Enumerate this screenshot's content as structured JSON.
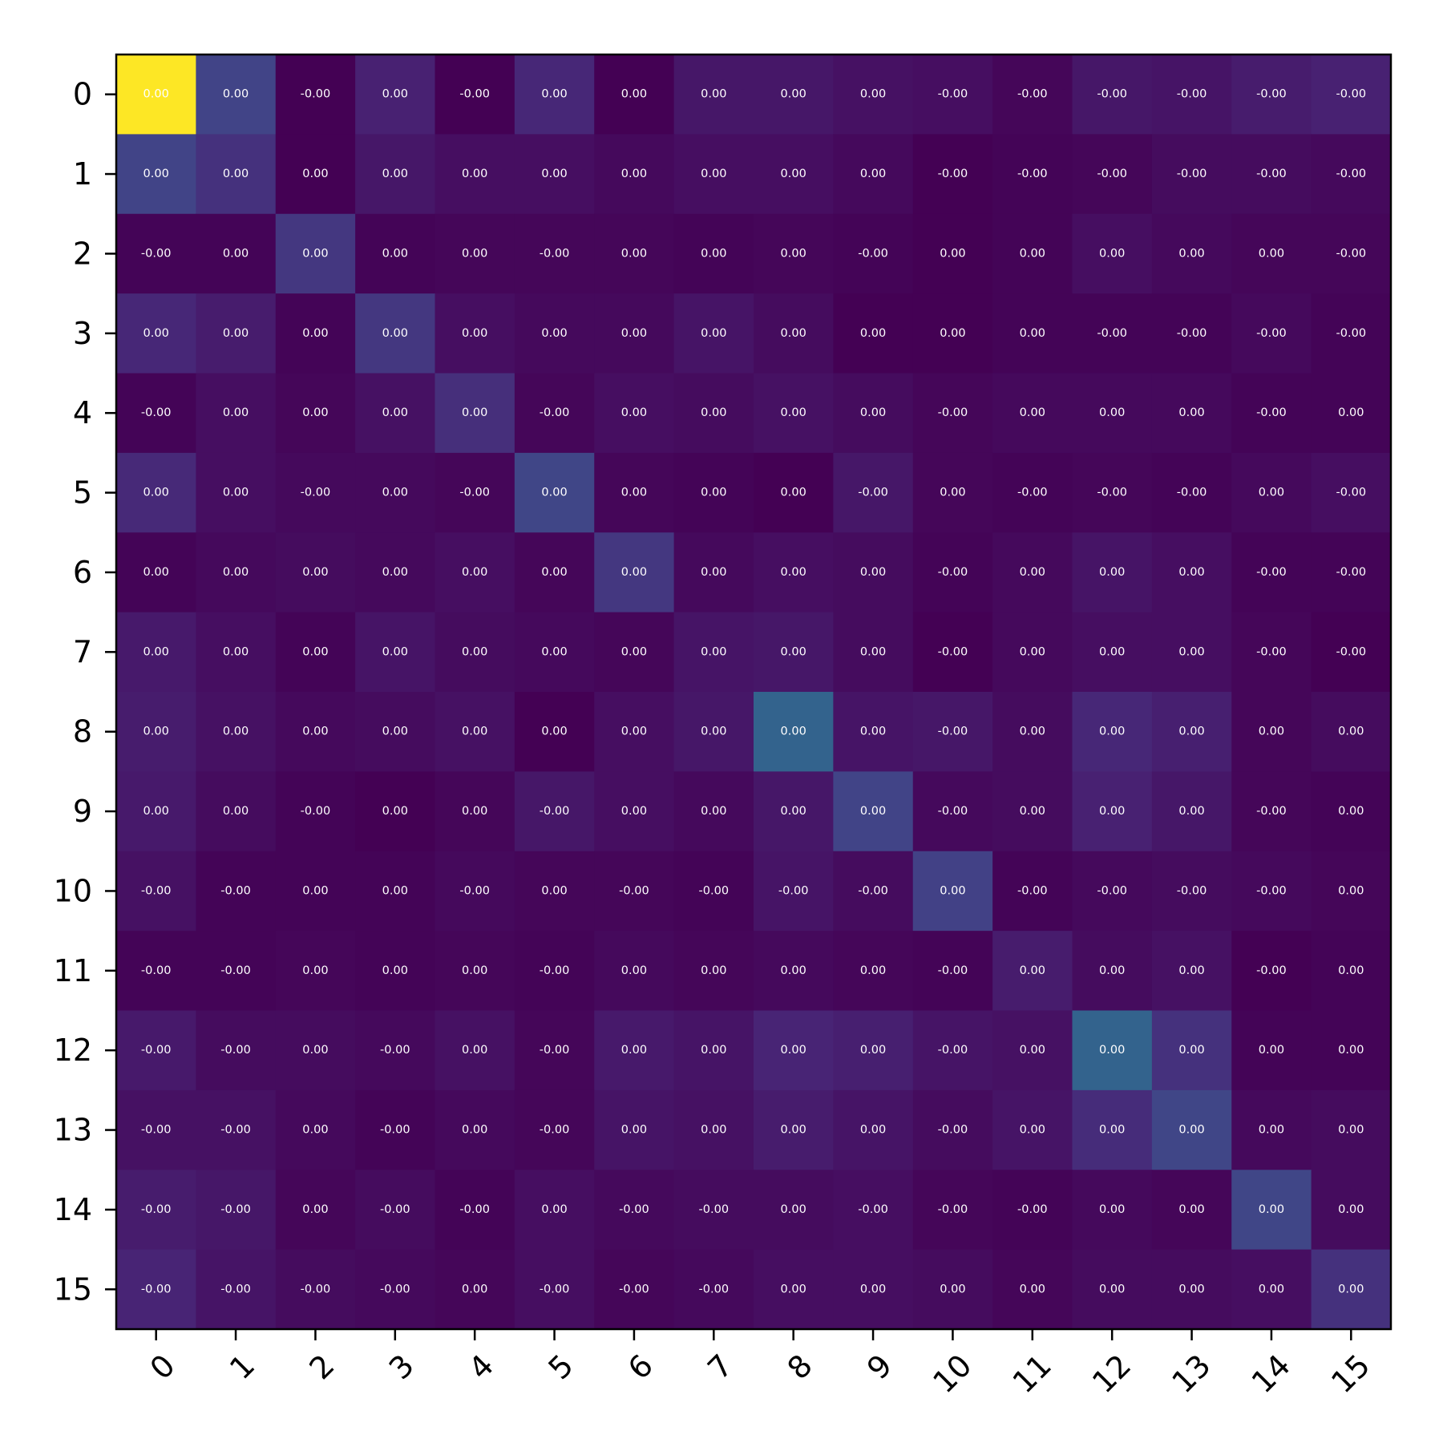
{
  "chart_data": {
    "type": "heatmap",
    "title": "",
    "xlabel": "",
    "ylabel": "",
    "colormap": "viridis",
    "x_labels": [
      "0",
      "1",
      "2",
      "3",
      "4",
      "5",
      "6",
      "7",
      "8",
      "9",
      "10",
      "11",
      "12",
      "13",
      "14",
      "15"
    ],
    "y_labels": [
      "0",
      "1",
      "2",
      "3",
      "4",
      "5",
      "6",
      "7",
      "8",
      "9",
      "10",
      "11",
      "12",
      "13",
      "14",
      "15"
    ],
    "intensity_scale": [
      0,
      1
    ],
    "intensity": [
      [
        1.0,
        0.25,
        0.0,
        0.12,
        0.0,
        0.14,
        0.0,
        0.08,
        0.08,
        0.06,
        0.05,
        0.02,
        0.08,
        0.07,
        0.1,
        0.12
      ],
      [
        0.25,
        0.18,
        0.0,
        0.08,
        0.05,
        0.05,
        0.03,
        0.05,
        0.05,
        0.03,
        0.0,
        0.01,
        0.02,
        0.04,
        0.04,
        0.03
      ],
      [
        0.01,
        0.01,
        0.2,
        0.01,
        0.02,
        0.02,
        0.02,
        0.01,
        0.02,
        0.01,
        0.0,
        0.01,
        0.05,
        0.03,
        0.02,
        0.02
      ],
      [
        0.14,
        0.1,
        0.01,
        0.2,
        0.05,
        0.03,
        0.03,
        0.07,
        0.04,
        0.0,
        0.0,
        0.01,
        0.01,
        0.01,
        0.03,
        0.01
      ],
      [
        0.01,
        0.05,
        0.02,
        0.06,
        0.17,
        0.02,
        0.05,
        0.04,
        0.06,
        0.04,
        0.02,
        0.03,
        0.03,
        0.03,
        0.01,
        0.01
      ],
      [
        0.15,
        0.05,
        0.03,
        0.03,
        0.02,
        0.26,
        0.02,
        0.01,
        0.0,
        0.08,
        0.02,
        0.01,
        0.02,
        0.01,
        0.03,
        0.05
      ],
      [
        0.01,
        0.03,
        0.04,
        0.03,
        0.05,
        0.02,
        0.2,
        0.03,
        0.05,
        0.04,
        0.01,
        0.03,
        0.07,
        0.05,
        0.01,
        0.01
      ],
      [
        0.09,
        0.05,
        0.01,
        0.07,
        0.04,
        0.03,
        0.02,
        0.07,
        0.08,
        0.04,
        0.0,
        0.03,
        0.05,
        0.05,
        0.02,
        0.0
      ],
      [
        0.1,
        0.06,
        0.03,
        0.04,
        0.06,
        0.0,
        0.05,
        0.08,
        0.4,
        0.07,
        0.08,
        0.04,
        0.14,
        0.11,
        0.02,
        0.04
      ],
      [
        0.09,
        0.04,
        0.01,
        0.0,
        0.02,
        0.08,
        0.05,
        0.03,
        0.08,
        0.25,
        0.03,
        0.04,
        0.12,
        0.08,
        0.02,
        0.01
      ],
      [
        0.06,
        0.01,
        0.01,
        0.01,
        0.03,
        0.02,
        0.02,
        0.01,
        0.07,
        0.04,
        0.24,
        0.01,
        0.03,
        0.04,
        0.03,
        0.02
      ],
      [
        0.01,
        0.01,
        0.02,
        0.01,
        0.02,
        0.01,
        0.03,
        0.02,
        0.03,
        0.02,
        0.01,
        0.1,
        0.04,
        0.06,
        0.0,
        0.01
      ],
      [
        0.09,
        0.04,
        0.04,
        0.03,
        0.06,
        0.02,
        0.09,
        0.07,
        0.13,
        0.11,
        0.07,
        0.06,
        0.4,
        0.18,
        0.01,
        0.01
      ],
      [
        0.06,
        0.06,
        0.03,
        0.01,
        0.03,
        0.02,
        0.07,
        0.06,
        0.1,
        0.07,
        0.04,
        0.07,
        0.16,
        0.26,
        0.03,
        0.04
      ],
      [
        0.1,
        0.08,
        0.02,
        0.04,
        0.01,
        0.05,
        0.03,
        0.04,
        0.04,
        0.05,
        0.02,
        0.01,
        0.03,
        0.02,
        0.26,
        0.04
      ],
      [
        0.13,
        0.07,
        0.04,
        0.03,
        0.02,
        0.05,
        0.02,
        0.03,
        0.05,
        0.05,
        0.04,
        0.02,
        0.04,
        0.04,
        0.05,
        0.18
      ]
    ],
    "cell_text": [
      [
        "0.00",
        "0.00",
        "-0.00",
        "0.00",
        "-0.00",
        "0.00",
        "0.00",
        "0.00",
        "0.00",
        "0.00",
        "-0.00",
        "-0.00",
        "-0.00",
        "-0.00",
        "-0.00",
        "-0.00"
      ],
      [
        "0.00",
        "0.00",
        "0.00",
        "0.00",
        "0.00",
        "0.00",
        "0.00",
        "0.00",
        "0.00",
        "0.00",
        "-0.00",
        "-0.00",
        "-0.00",
        "-0.00",
        "-0.00",
        "-0.00"
      ],
      [
        "-0.00",
        "0.00",
        "0.00",
        "0.00",
        "0.00",
        "-0.00",
        "0.00",
        "0.00",
        "0.00",
        "-0.00",
        "0.00",
        "0.00",
        "0.00",
        "0.00",
        "0.00",
        "-0.00"
      ],
      [
        "0.00",
        "0.00",
        "0.00",
        "0.00",
        "0.00",
        "0.00",
        "0.00",
        "0.00",
        "0.00",
        "0.00",
        "0.00",
        "0.00",
        "-0.00",
        "-0.00",
        "-0.00",
        "-0.00"
      ],
      [
        "-0.00",
        "0.00",
        "0.00",
        "0.00",
        "0.00",
        "-0.00",
        "0.00",
        "0.00",
        "0.00",
        "0.00",
        "-0.00",
        "0.00",
        "0.00",
        "0.00",
        "-0.00",
        "0.00"
      ],
      [
        "0.00",
        "0.00",
        "-0.00",
        "0.00",
        "-0.00",
        "0.00",
        "0.00",
        "0.00",
        "0.00",
        "-0.00",
        "0.00",
        "-0.00",
        "-0.00",
        "-0.00",
        "0.00",
        "-0.00"
      ],
      [
        "0.00",
        "0.00",
        "0.00",
        "0.00",
        "0.00",
        "0.00",
        "0.00",
        "0.00",
        "0.00",
        "0.00",
        "-0.00",
        "0.00",
        "0.00",
        "0.00",
        "-0.00",
        "-0.00"
      ],
      [
        "0.00",
        "0.00",
        "0.00",
        "0.00",
        "0.00",
        "0.00",
        "0.00",
        "0.00",
        "0.00",
        "0.00",
        "-0.00",
        "0.00",
        "0.00",
        "0.00",
        "-0.00",
        "-0.00"
      ],
      [
        "0.00",
        "0.00",
        "0.00",
        "0.00",
        "0.00",
        "0.00",
        "0.00",
        "0.00",
        "0.00",
        "0.00",
        "-0.00",
        "0.00",
        "0.00",
        "0.00",
        "0.00",
        "0.00"
      ],
      [
        "0.00",
        "0.00",
        "-0.00",
        "0.00",
        "0.00",
        "-0.00",
        "0.00",
        "0.00",
        "0.00",
        "0.00",
        "-0.00",
        "0.00",
        "0.00",
        "0.00",
        "-0.00",
        "0.00"
      ],
      [
        "-0.00",
        "-0.00",
        "0.00",
        "0.00",
        "-0.00",
        "0.00",
        "-0.00",
        "-0.00",
        "-0.00",
        "-0.00",
        "0.00",
        "-0.00",
        "-0.00",
        "-0.00",
        "-0.00",
        "0.00"
      ],
      [
        "-0.00",
        "-0.00",
        "0.00",
        "0.00",
        "0.00",
        "-0.00",
        "0.00",
        "0.00",
        "0.00",
        "0.00",
        "-0.00",
        "0.00",
        "0.00",
        "0.00",
        "-0.00",
        "0.00"
      ],
      [
        "-0.00",
        "-0.00",
        "0.00",
        "-0.00",
        "0.00",
        "-0.00",
        "0.00",
        "0.00",
        "0.00",
        "0.00",
        "-0.00",
        "0.00",
        "0.00",
        "0.00",
        "0.00",
        "0.00"
      ],
      [
        "-0.00",
        "-0.00",
        "0.00",
        "-0.00",
        "0.00",
        "-0.00",
        "0.00",
        "0.00",
        "0.00",
        "0.00",
        "-0.00",
        "0.00",
        "0.00",
        "0.00",
        "0.00",
        "0.00"
      ],
      [
        "-0.00",
        "-0.00",
        "0.00",
        "-0.00",
        "-0.00",
        "0.00",
        "-0.00",
        "-0.00",
        "0.00",
        "-0.00",
        "-0.00",
        "-0.00",
        "0.00",
        "0.00",
        "0.00",
        "0.00"
      ],
      [
        "-0.00",
        "-0.00",
        "-0.00",
        "-0.00",
        "0.00",
        "-0.00",
        "-0.00",
        "-0.00",
        "0.00",
        "0.00",
        "0.00",
        "0.00",
        "0.00",
        "0.00",
        "0.00",
        "0.00"
      ]
    ],
    "grid": false,
    "legend": "none"
  }
}
